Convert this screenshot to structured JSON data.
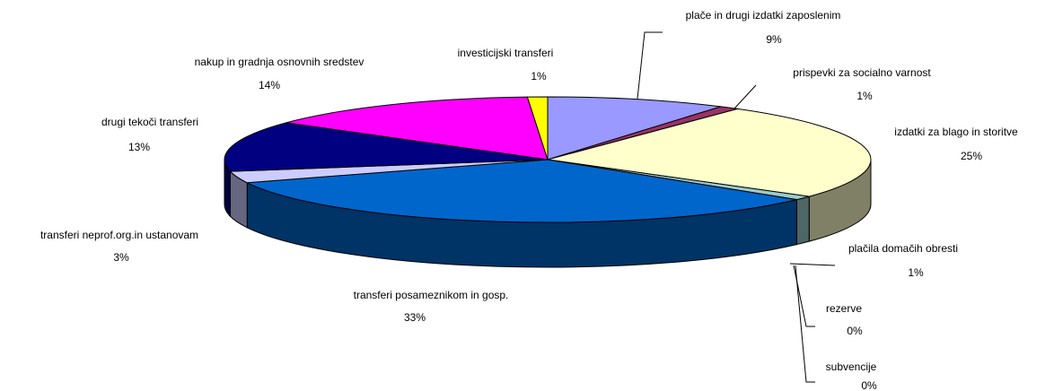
{
  "chart_data": {
    "type": "pie",
    "categories": [
      "plače in drugi izdatki zaposlenim",
      "prispevki za socialno varnost",
      "izdatki za blago in storitve",
      "plačila domačih obresti",
      "rezerve",
      "subvencije",
      "transferi posameznikom in gosp.",
      "transferi neprof.org.in ustanovam",
      "drugi tekoči transferi",
      "nakup in gradnja osnovnih sredstev",
      "investicijski transferi"
    ],
    "values": [
      9,
      1,
      25,
      1,
      0,
      0,
      33,
      3,
      13,
      14,
      1
    ],
    "value_labels": [
      "9%",
      "1%",
      "25%",
      "1%",
      "0%",
      "0%",
      "33%",
      "3%",
      "13%",
      "14%",
      "1%"
    ],
    "colors": [
      "#9999ff",
      "#993366",
      "#ffffcc",
      "#99cccc",
      "#993333",
      "#339999",
      "#0066cc",
      "#ccccff",
      "#000080",
      "#ff00ff",
      "#ffff00"
    ]
  }
}
